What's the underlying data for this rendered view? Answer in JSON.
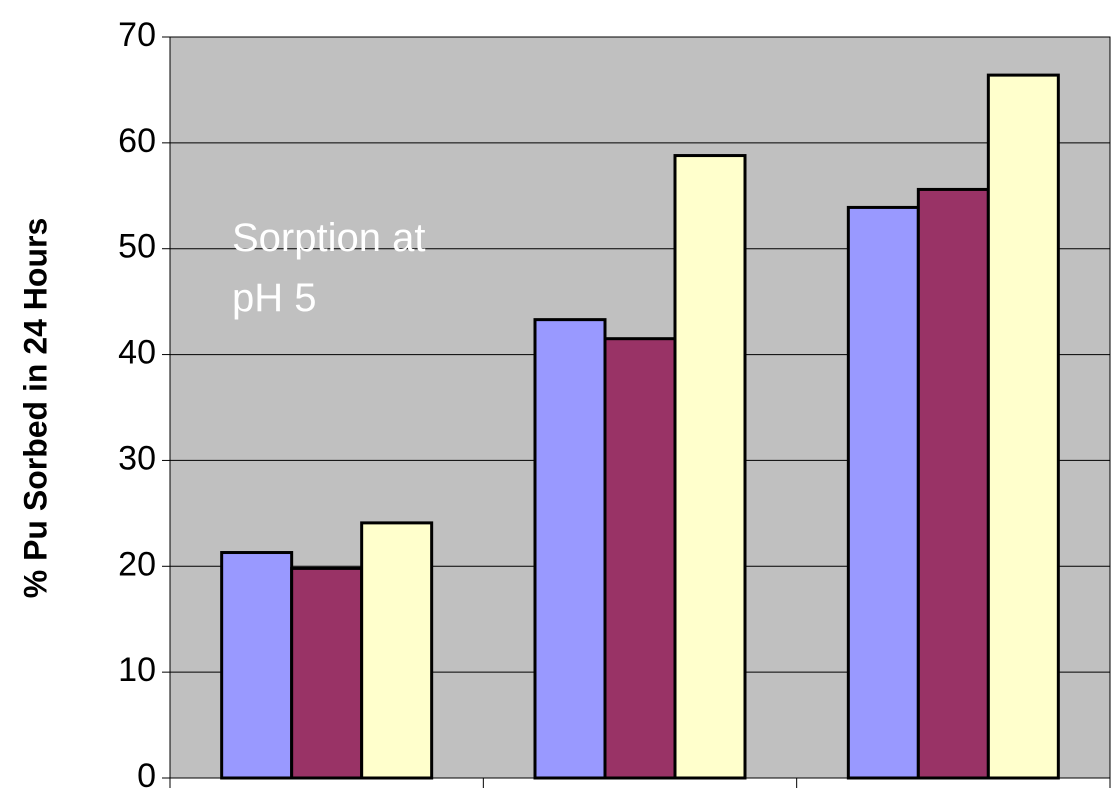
{
  "chart_data": {
    "type": "bar",
    "y_label": "% Pu Sorbed in 24 Hours",
    "annotation": "Sorption at pH 5",
    "categories": [
      null,
      null,
      null
    ],
    "series": [
      {
        "color": "#9999ff",
        "values": [
          21.3,
          43.3,
          53.9
        ]
      },
      {
        "color": "#993366",
        "values": [
          19.8,
          41.5,
          55.6
        ]
      },
      {
        "color": "#ffffcc",
        "values": [
          24.1,
          58.8,
          66.4
        ]
      }
    ],
    "ylim": [
      0,
      70
    ],
    "yticks": [
      0,
      10,
      20,
      30,
      40,
      50,
      60,
      70
    ],
    "grid": true,
    "background": "#c0c0c0"
  }
}
